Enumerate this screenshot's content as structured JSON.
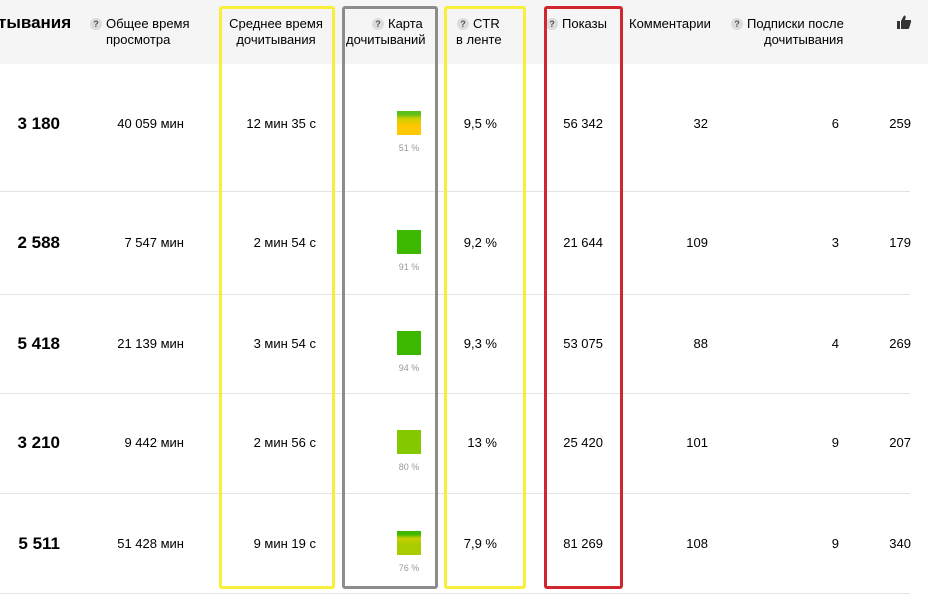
{
  "colors": {
    "yellow_frame": "#f7ef3a",
    "gray_frame": "#8c8c8c",
    "red_frame": "#d0262d",
    "header_bg": "#f5f5f5"
  },
  "header": {
    "first_col": "тывания",
    "total_time": [
      "Общее время",
      "просмотра"
    ],
    "avg_time": [
      "Среднее время",
      "дочитывания"
    ],
    "read_map": [
      "Карта",
      "дочитываний"
    ],
    "ctr": [
      "CTR",
      "в ленте"
    ],
    "impressions": "Показы",
    "comments": "Комментарии",
    "subs": [
      "Подписки после",
      "дочитывания"
    ],
    "help_mark": "?",
    "likes_icon": "thumbs-up-icon"
  },
  "rows": [
    {
      "reads": "3 180",
      "total_time": "40 059 мин",
      "avg_time": "12 мин 35 с",
      "map_pct": "51 %",
      "map_top": "#5cbf1a",
      "map_bottom": "#ffc800",
      "ctr": "9,5 %",
      "impressions": "56 342",
      "comments": "32",
      "subs": "6",
      "likes": "259"
    },
    {
      "reads": "2 588",
      "total_time": "7 547 мин",
      "avg_time": "2 мин 54 с",
      "map_pct": "91 %",
      "map_top": "#3cb800",
      "map_bottom": "#3cb800",
      "ctr": "9,2 %",
      "impressions": "21 644",
      "comments": "109",
      "subs": "3",
      "likes": "179"
    },
    {
      "reads": "5 418",
      "total_time": "21 139 мин",
      "avg_time": "3 мин 54 с",
      "map_pct": "94 %",
      "map_top": "#3cb800",
      "map_bottom": "#3cb800",
      "ctr": "9,3 %",
      "impressions": "53 075",
      "comments": "88",
      "subs": "4",
      "likes": "269"
    },
    {
      "reads": "3 210",
      "total_time": "9 442 мин",
      "avg_time": "2 мин 56 с",
      "map_pct": "80 %",
      "map_top": "#84c800",
      "map_bottom": "#84c800",
      "ctr": "13 %",
      "impressions": "25 420",
      "comments": "101",
      "subs": "9",
      "likes": "207"
    },
    {
      "reads": "5 511",
      "total_time": "51 428 мин",
      "avg_time": "9 мин 19 с",
      "map_pct": "76 %",
      "map_top": "#3cb800",
      "map_bottom": "#a8cc00",
      "ctr": "7,9 %",
      "impressions": "81 269",
      "comments": "108",
      "subs": "9",
      "likes": "340"
    }
  ]
}
